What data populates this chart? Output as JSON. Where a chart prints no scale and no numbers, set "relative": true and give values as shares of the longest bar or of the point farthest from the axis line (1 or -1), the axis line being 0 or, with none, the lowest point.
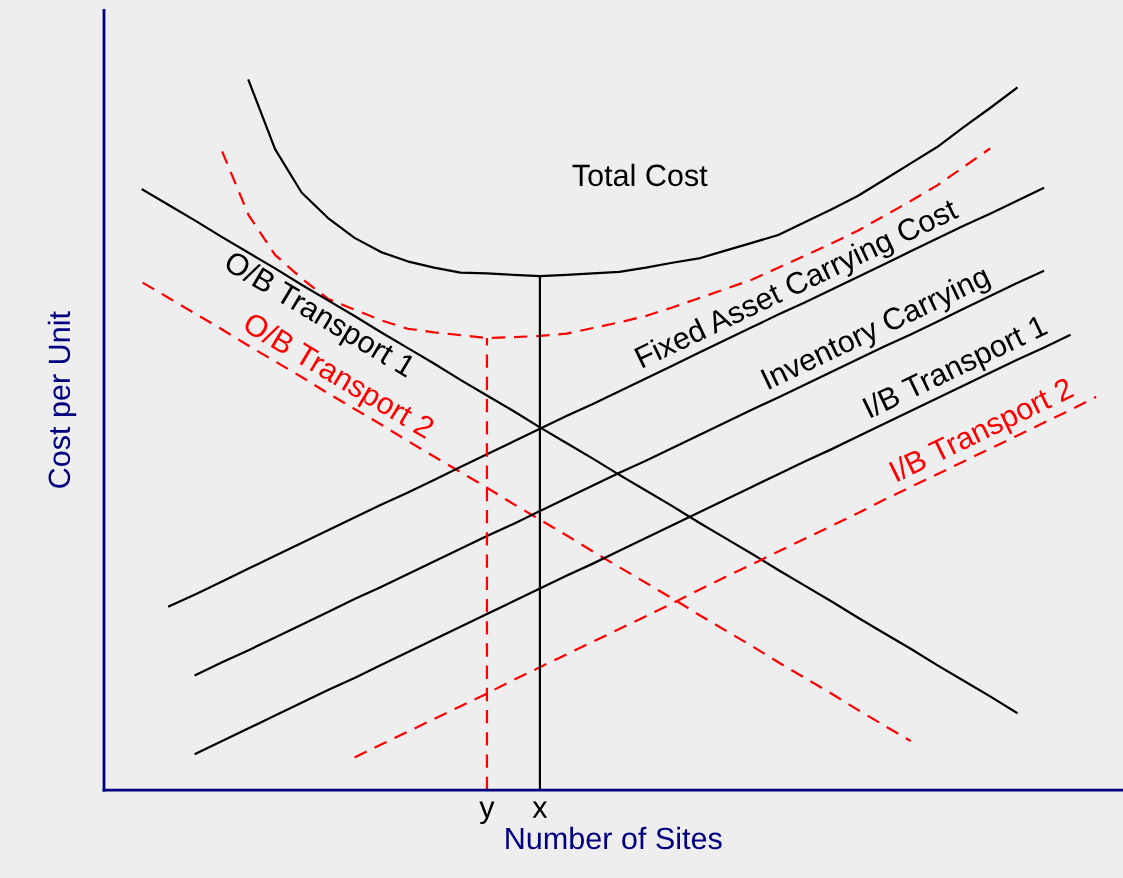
{
  "chart_data": {
    "type": "line",
    "relative": true,
    "xlabel": "Number of Sites",
    "ylabel": "Cost per Unit",
    "grid": false,
    "legend": false,
    "marker": "none",
    "categories": [
      null,
      null,
      null,
      null,
      null,
      null,
      null,
      null,
      null,
      null,
      null,
      null,
      null,
      null,
      "y",
      null,
      "x",
      null,
      null,
      null,
      null,
      null,
      null,
      null,
      null,
      null,
      null,
      null,
      null,
      null,
      null,
      null,
      null,
      null,
      null,
      null,
      null,
      null,
      null
    ],
    "ref_lines": [
      {
        "axis": "x",
        "value": "y",
        "color": "#ff0000",
        "line_style": "dashed"
      },
      {
        "axis": "x",
        "value": "x",
        "color": "#000000",
        "line_style": "solid"
      }
    ],
    "series": [
      {
        "name": "Total Cost",
        "color": "#000000",
        "line_style": "solid",
        "values": [
          null,
          null,
          null,
          null,
          null,
          1.0,
          0.903,
          0.842,
          0.806,
          0.778,
          0.758,
          0.745,
          0.736,
          0.729,
          0.728,
          0.726,
          0.724,
          0.726,
          0.728,
          0.73,
          0.736,
          0.743,
          0.749,
          0.76,
          0.771,
          0.782,
          0.8,
          0.818,
          0.837,
          0.86,
          0.883,
          0.906,
          0.934,
          0.961,
          0.989,
          null,
          null,
          null,
          null
        ]
      },
      {
        "color": "#ff0000",
        "line_style": "dashed",
        "values": [
          null,
          null,
          null,
          null,
          0.9,
          0.81,
          0.754,
          0.721,
          0.692,
          0.677,
          0.662,
          0.65,
          0.645,
          0.641,
          0.637,
          0.638,
          0.64,
          0.643,
          0.651,
          0.659,
          0.668,
          0.68,
          0.693,
          0.706,
          0.719,
          0.736,
          0.753,
          0.77,
          0.788,
          0.809,
          0.83,
          0.852,
          0.878,
          0.904,
          null,
          null,
          null,
          null,
          null
        ]
      },
      {
        "name": "O/B Transport 1",
        "color": "#000000",
        "line_style": "solid",
        "values": [
          null,
          0.846,
          0.824,
          0.802,
          0.779,
          0.757,
          0.735,
          0.712,
          0.69,
          0.668,
          0.645,
          0.623,
          0.601,
          0.578,
          0.556,
          0.534,
          0.511,
          0.489,
          0.467,
          0.444,
          0.422,
          0.4,
          0.377,
          0.355,
          0.333,
          0.31,
          0.288,
          0.266,
          0.243,
          0.221,
          0.199,
          0.176,
          0.154,
          0.132,
          0.109,
          null,
          null,
          null,
          null
        ]
      },
      {
        "name": "O/B Transport 2",
        "color": "#ff0000",
        "line_style": "dashed",
        "values": [
          null,
          0.715,
          0.693,
          0.671,
          0.649,
          0.626,
          0.604,
          0.582,
          0.559,
          0.537,
          0.515,
          0.492,
          0.47,
          0.448,
          0.426,
          0.403,
          0.381,
          0.359,
          0.336,
          0.314,
          0.292,
          0.27,
          0.247,
          0.225,
          0.203,
          0.18,
          0.158,
          0.136,
          0.113,
          0.091,
          0.069,
          null,
          null,
          null,
          null,
          null,
          null,
          null,
          null
        ]
      },
      {
        "name": "Fixed Asset Carrying Cost",
        "color": "#000000",
        "line_style": "solid",
        "values": [
          null,
          null,
          0.259,
          0.276,
          0.294,
          0.312,
          0.33,
          0.348,
          0.366,
          0.384,
          0.402,
          0.419,
          0.437,
          0.455,
          0.473,
          0.491,
          0.509,
          0.527,
          0.544,
          0.562,
          0.58,
          0.598,
          0.616,
          0.634,
          0.652,
          0.67,
          0.687,
          0.705,
          0.723,
          0.741,
          0.759,
          0.777,
          0.795,
          0.812,
          0.83,
          0.848,
          null,
          null,
          null
        ]
      },
      {
        "name": "Inventory Carrying",
        "color": "#000000",
        "line_style": "solid",
        "values": [
          null,
          null,
          null,
          0.162,
          0.18,
          0.197,
          0.215,
          0.233,
          0.251,
          0.269,
          0.286,
          0.304,
          0.322,
          0.34,
          0.358,
          0.375,
          0.393,
          0.411,
          0.429,
          0.447,
          0.464,
          0.482,
          0.5,
          0.518,
          0.536,
          0.553,
          0.571,
          0.589,
          0.607,
          0.625,
          0.642,
          0.66,
          0.678,
          0.696,
          0.714,
          0.731,
          null,
          null,
          null
        ]
      },
      {
        "name": "I/B Transport 1",
        "color": "#000000",
        "line_style": "solid",
        "values": [
          null,
          null,
          null,
          0.051,
          0.069,
          0.087,
          0.105,
          0.123,
          0.141,
          0.158,
          0.176,
          0.194,
          0.212,
          0.23,
          0.248,
          0.266,
          0.284,
          0.302,
          0.319,
          0.337,
          0.355,
          0.373,
          0.391,
          0.409,
          0.427,
          0.445,
          0.463,
          0.48,
          0.498,
          0.516,
          0.534,
          0.552,
          0.57,
          0.588,
          0.606,
          0.623,
          0.641,
          null,
          null
        ]
      },
      {
        "name": "I/B Transport 2",
        "color": "#ff0000",
        "line_style": "dashed",
        "values": [
          null,
          null,
          null,
          null,
          null,
          null,
          null,
          null,
          null,
          0.046,
          0.064,
          0.082,
          0.1,
          0.118,
          0.136,
          0.155,
          0.173,
          0.191,
          0.209,
          0.227,
          0.245,
          0.263,
          0.282,
          0.3,
          0.318,
          0.336,
          0.354,
          0.372,
          0.39,
          0.409,
          0.427,
          0.445,
          0.463,
          0.481,
          0.499,
          0.517,
          0.535,
          0.554,
          null
        ]
      }
    ]
  }
}
